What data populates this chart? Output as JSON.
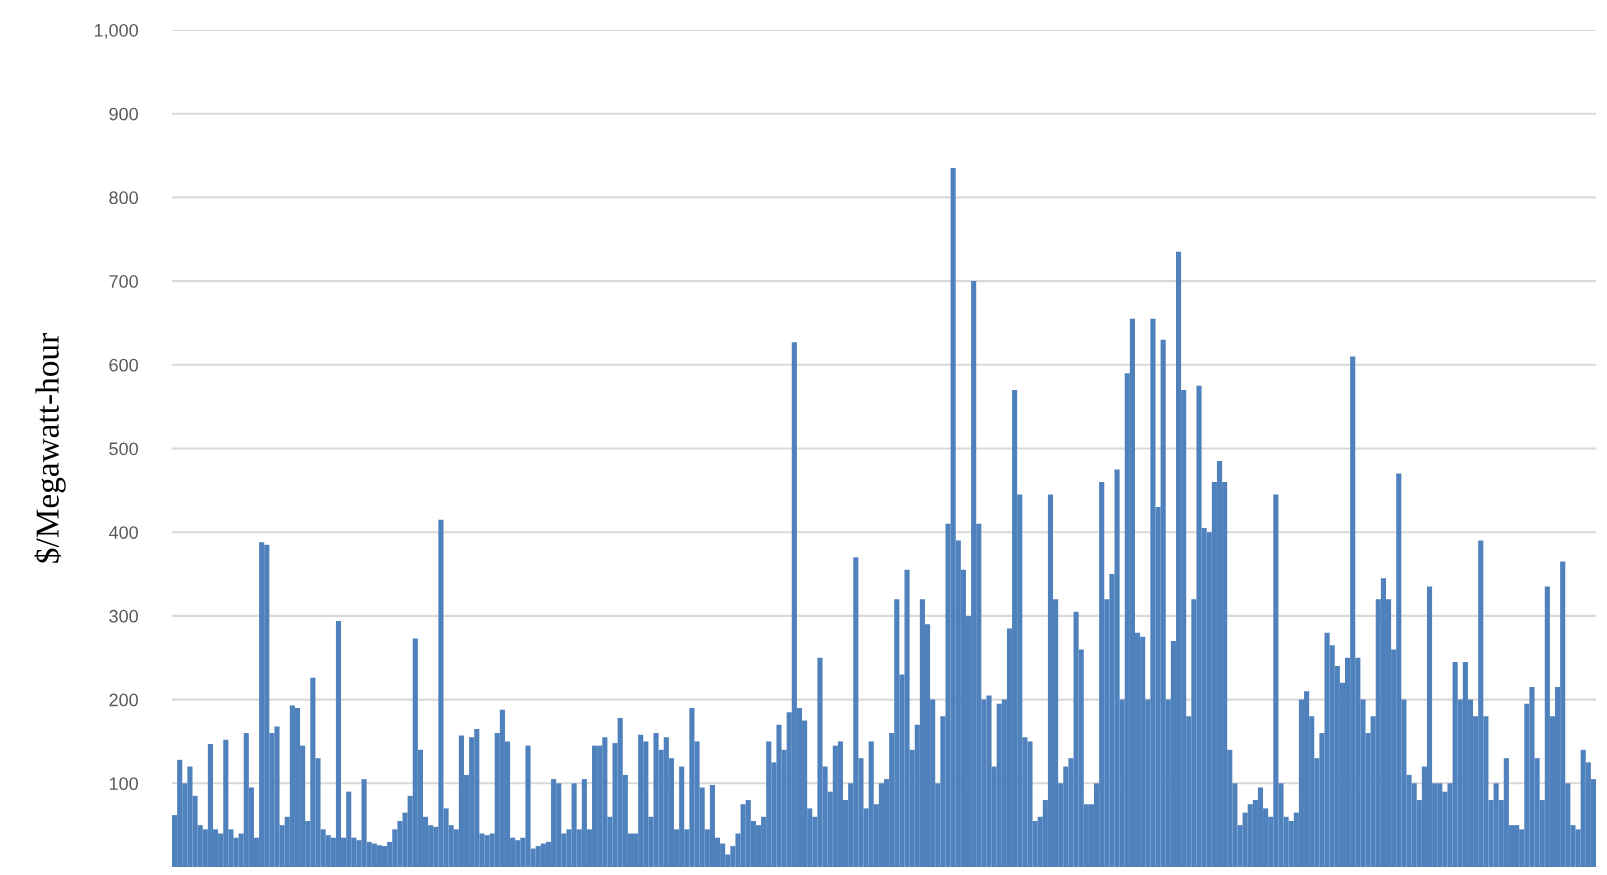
{
  "chart_data": {
    "type": "bar",
    "ylabel": "$/Megawatt-hour",
    "color": "#4f81bd",
    "grid": "y",
    "ylim": [
      0,
      1000
    ],
    "yticks": [
      100,
      200,
      300,
      400,
      500,
      600,
      700,
      800,
      900,
      {
        "value": 1000,
        "label": "1,000"
      }
    ],
    "categories": [
      null,
      null,
      null,
      null,
      null,
      null,
      null,
      null,
      null,
      null,
      null,
      null,
      null,
      null,
      null,
      null,
      null,
      null,
      null,
      null,
      null,
      null,
      null,
      null,
      null,
      null,
      null,
      null,
      null,
      null,
      null,
      null,
      null,
      null,
      null,
      null,
      null,
      null,
      null,
      null,
      null,
      null,
      null,
      null,
      null,
      null,
      null,
      null,
      null,
      null,
      null,
      null,
      null,
      null,
      null,
      null,
      null,
      null,
      null,
      null,
      null,
      null,
      null,
      null,
      null,
      null,
      null,
      null,
      null,
      null,
      null,
      null,
      null,
      null,
      null,
      null,
      null,
      null,
      null,
      null,
      null,
      null,
      null,
      null,
      null,
      null,
      null,
      null,
      null,
      null,
      null,
      null,
      null,
      null,
      null,
      null,
      null,
      null,
      null,
      null,
      null,
      null,
      null,
      null,
      null,
      null,
      null,
      null,
      null,
      null,
      null,
      null,
      null,
      null,
      null,
      null,
      null,
      null,
      null,
      null,
      null,
      null,
      null,
      null,
      null,
      null,
      null,
      null,
      null,
      null,
      null,
      null,
      null,
      null,
      null,
      null,
      null,
      null,
      null,
      null,
      null,
      null,
      null,
      null,
      null,
      null,
      null,
      null,
      null,
      null,
      null,
      null,
      null,
      null,
      null,
      null,
      null,
      null,
      null,
      null,
      null,
      null,
      null,
      null,
      null,
      null,
      null,
      null,
      null,
      null,
      null,
      null,
      null,
      null,
      null,
      null,
      null,
      null,
      null,
      null,
      null,
      null,
      null,
      null,
      null,
      null,
      null,
      null,
      null,
      null,
      null,
      null,
      null,
      null,
      null,
      null,
      null,
      null,
      null,
      null,
      null,
      null,
      null,
      null,
      null,
      null,
      null,
      null,
      null,
      null,
      null,
      null,
      null,
      null,
      null,
      null,
      null,
      null,
      null,
      null,
      null,
      null,
      null,
      null,
      null,
      null,
      null,
      null,
      null,
      null,
      null,
      null,
      null,
      null,
      null,
      null,
      null,
      null,
      null,
      null,
      null,
      null,
      null,
      null,
      null,
      null,
      null,
      null,
      null,
      null,
      null,
      null,
      null,
      null,
      null,
      null,
      null,
      null,
      null,
      null,
      null,
      null,
      null,
      null,
      null,
      null,
      null,
      null,
      null,
      null,
      null,
      null,
      null,
      null,
      null,
      null,
      null,
      null
    ],
    "values": [
      62,
      128,
      100,
      120,
      85,
      50,
      45,
      147,
      45,
      40,
      152,
      45,
      35,
      40,
      160,
      95,
      35,
      388,
      385,
      160,
      168,
      50,
      60,
      193,
      190,
      145,
      55,
      226,
      130,
      45,
      38,
      35,
      294,
      35,
      90,
      35,
      32,
      105,
      30,
      28,
      26,
      25,
      30,
      45,
      55,
      65,
      85,
      273,
      140,
      60,
      50,
      48,
      415,
      70,
      50,
      45,
      157,
      110,
      155,
      165,
      40,
      38,
      40,
      160,
      188,
      150,
      35,
      32,
      35,
      145,
      22,
      25,
      28,
      30,
      105,
      100,
      40,
      45,
      100,
      45,
      105,
      45,
      145,
      145,
      155,
      60,
      148,
      178,
      110,
      40,
      40,
      158,
      150,
      60,
      160,
      140,
      155,
      130,
      45,
      120,
      45,
      190,
      150,
      95,
      45,
      98,
      35,
      28,
      15,
      25,
      40,
      75,
      80,
      55,
      50,
      60,
      150,
      125,
      170,
      140,
      185,
      627,
      190,
      175,
      70,
      60,
      250,
      120,
      90,
      145,
      150,
      80,
      100,
      370,
      130,
      70,
      150,
      75,
      100,
      105,
      160,
      320,
      230,
      355,
      140,
      170,
      320,
      290,
      200,
      100,
      180,
      410,
      835,
      390,
      355,
      300,
      700,
      410,
      200,
      205,
      120,
      195,
      200,
      285,
      570,
      445,
      155,
      150,
      55,
      60,
      80,
      445,
      320,
      100,
      120,
      130,
      305,
      260,
      75,
      75,
      100,
      460,
      320,
      350,
      475,
      200,
      590,
      655,
      280,
      275,
      200,
      655,
      430,
      630,
      200,
      270,
      735,
      570,
      180,
      320,
      575,
      405,
      400,
      460,
      485,
      460,
      140,
      100,
      50,
      65,
      75,
      80,
      95,
      70,
      60,
      445,
      100,
      60,
      55,
      65,
      200,
      210,
      180,
      130,
      160,
      280,
      265,
      240,
      220,
      250,
      610,
      250,
      200,
      160,
      180,
      320,
      345,
      320,
      260,
      470,
      200,
      110,
      100,
      80,
      120,
      335,
      100,
      100,
      90,
      100,
      245,
      200,
      245,
      200,
      180,
      390,
      180,
      80,
      100,
      80,
      130,
      50,
      50,
      45,
      195,
      215,
      130,
      80,
      335,
      180,
      215,
      365,
      100,
      50,
      45,
      140,
      125,
      105
    ]
  }
}
